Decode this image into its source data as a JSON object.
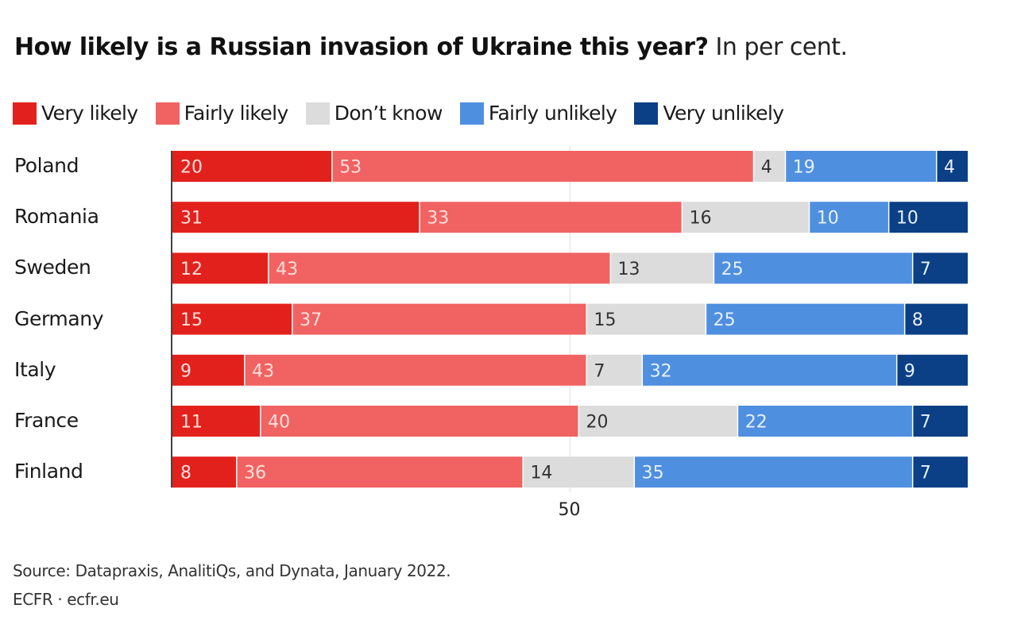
{
  "chart_data": {
    "type": "bar",
    "orientation": "horizontal",
    "stacked": true,
    "title": "How likely is a Russian invasion of Ukraine this year?",
    "subtitle": "In per cent.",
    "xlabel": "",
    "ylabel": "",
    "xlim": [
      0,
      100
    ],
    "grid": false,
    "reference_line": 50,
    "x_ticks": [
      "50"
    ],
    "legend_position": "top-left",
    "categories": [
      "Poland",
      "Romania",
      "Sweden",
      "Germany",
      "Italy",
      "France",
      "Finland"
    ],
    "series": [
      {
        "name": "Very likely",
        "color": "#e3211c",
        "label_color": "#fde0dc",
        "values": [
          20,
          31,
          12,
          15,
          9,
          11,
          8
        ]
      },
      {
        "name": "Fairly likely",
        "color": "#f06362",
        "label_color": "#fde0dc",
        "values": [
          53,
          33,
          43,
          37,
          43,
          40,
          36
        ]
      },
      {
        "name": "Don’t know",
        "color": "#dcdcdc",
        "label_color": "#333333",
        "values": [
          4,
          16,
          13,
          15,
          7,
          20,
          14
        ]
      },
      {
        "name": "Fairly unlikely",
        "color": "#4f8fdf",
        "label_color": "#e6f0fb",
        "values": [
          19,
          10,
          25,
          25,
          32,
          22,
          35
        ]
      },
      {
        "name": "Very unlikely",
        "color": "#0b3f86",
        "label_color": "#e6f0fb",
        "values": [
          4,
          10,
          7,
          8,
          9,
          7,
          7
        ]
      }
    ]
  },
  "header": {
    "title_bold": "How likely is a Russian invasion of Ukraine this year?",
    "title_light": "In per cent."
  },
  "footer": {
    "source": "Source: Datapraxis, AnalitiQs, and Dynata, January 2022.",
    "brand": "ECFR · ecfr.eu"
  }
}
